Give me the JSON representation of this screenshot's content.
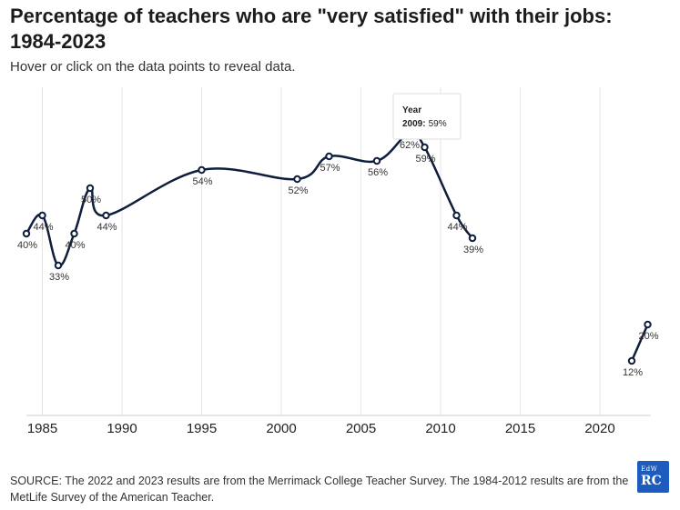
{
  "chart_data": {
    "type": "line",
    "title": "Percentage of teachers who are \"very satisfied\" with their jobs: 1984-2023",
    "subtitle": "Hover or click on the data points to reveal data.",
    "xlabel": "",
    "ylabel": "",
    "xlim": [
      1983.8,
      2023.5
    ],
    "ylim": [
      0,
      65
    ],
    "xticks": [
      1985,
      1990,
      1995,
      2000,
      2005,
      2010,
      2015,
      2020
    ],
    "grid": "vertical",
    "line_color": "#0f1e3d",
    "segments": [
      [
        {
          "x": 1984,
          "y": 40,
          "label": "40%"
        },
        {
          "x": 1985,
          "y": 44,
          "label": "44%"
        },
        {
          "x": 1986,
          "y": 33,
          "label": "33%"
        },
        {
          "x": 1987,
          "y": 40,
          "label": "40%"
        },
        {
          "x": 1988,
          "y": 50,
          "label": "50%"
        },
        {
          "x": 1989,
          "y": 44,
          "label": "44%"
        },
        {
          "x": 1995,
          "y": 54,
          "label": "54%"
        },
        {
          "x": 2001,
          "y": 52,
          "label": "52%"
        },
        {
          "x": 2003,
          "y": 57,
          "label": "57%"
        },
        {
          "x": 2006,
          "y": 56,
          "label": "56%"
        },
        {
          "x": 2008,
          "y": 62,
          "label": "62%"
        },
        {
          "x": 2009,
          "y": 59,
          "label": "59%"
        },
        {
          "x": 2011,
          "y": 44,
          "label": "44%"
        },
        {
          "x": 2012,
          "y": 39,
          "label": "39%"
        }
      ],
      [
        {
          "x": 2022,
          "y": 12,
          "label": "12%"
        },
        {
          "x": 2023,
          "y": 20,
          "label": "20%"
        }
      ]
    ],
    "tooltip": {
      "title": "Year",
      "year": "2009",
      "value": "59%"
    }
  },
  "source": "SOURCE: The 2022 and 2023 results are from the Merrimack College Teacher Survey. The 1984-2012 results are from the MetLife Survey of the American Teacher.",
  "logo": {
    "line1": "EdW",
    "line2": "RC",
    "color": "#1d5bbf"
  }
}
